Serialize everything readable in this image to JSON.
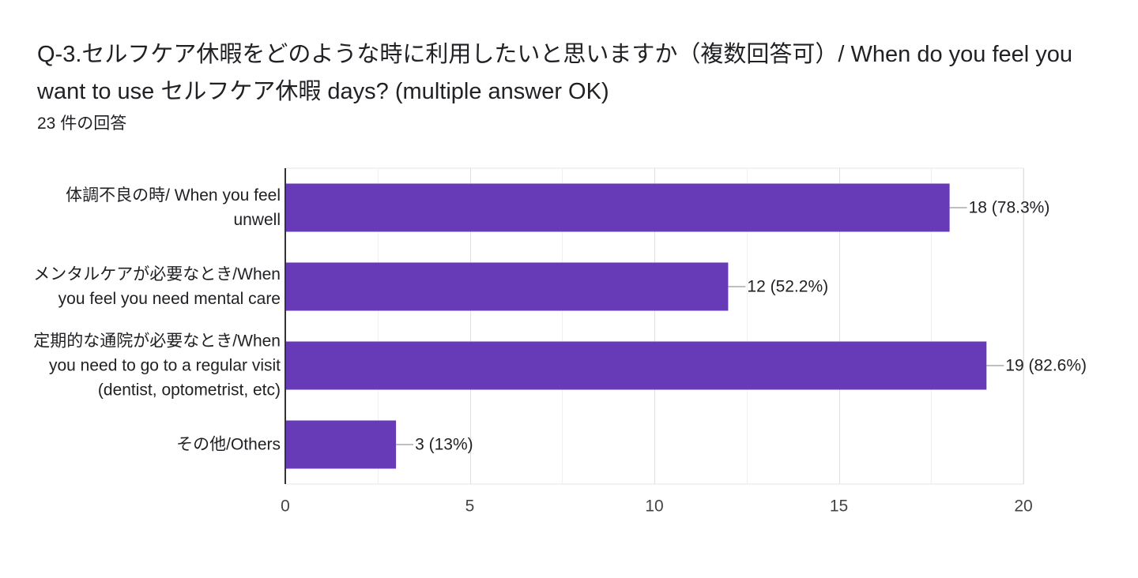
{
  "question": {
    "title": "Q-3.セルフケア休暇をどのような時に利用したいと思いますか（複数回答可）/ When do you feel you want to use セルフケア休暇 days? (multiple answer OK)",
    "response_count": "23 件の回答"
  },
  "colors": {
    "bar": "#673ab7",
    "gridline": "#e6e6e6",
    "axis": "#333333",
    "leader": "#999999"
  },
  "chart_data": {
    "type": "bar",
    "orientation": "horizontal",
    "categories": [
      [
        "体調不良の時/ When you feel",
        "unwell"
      ],
      [
        "メンタルケアが必要なとき/When",
        "you feel you need mental care"
      ],
      [
        "定期的な通院が必要なとき/When",
        "you need to go to a regular visit",
        "(dentist, optometrist, etc)"
      ],
      [
        "その他/Others"
      ]
    ],
    "values": [
      18,
      12,
      19,
      3
    ],
    "data_labels": [
      "18 (78.3%)",
      "12 (52.2%)",
      "19 (82.6%)",
      "3 (13%)"
    ],
    "xlim": [
      0,
      20
    ],
    "xticks": [
      0,
      5,
      10,
      15,
      20
    ],
    "title": "",
    "xlabel": "",
    "ylabel": "",
    "grid": true,
    "legend": "none"
  }
}
